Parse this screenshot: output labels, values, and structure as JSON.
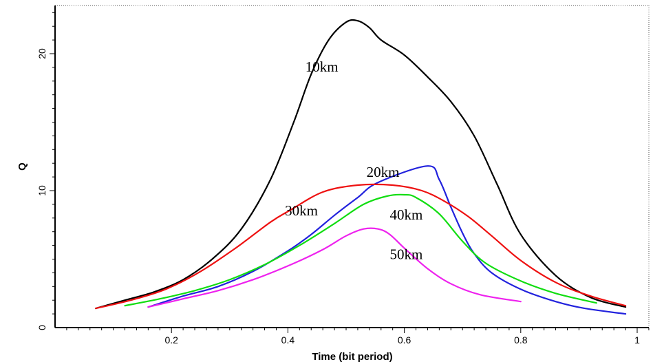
{
  "chart_data": {
    "type": "line",
    "title": "",
    "xlabel": "Time (bit period)",
    "ylabel": "Q",
    "xlim": [
      0,
      1.04
    ],
    "ylim": [
      0,
      22.5
    ],
    "xticks": [
      0.2,
      0.4,
      0.6,
      0.8,
      1
    ],
    "xtick_labels": [
      "0.2",
      "0.4",
      "0.6",
      "0.8",
      "1"
    ],
    "yticks": [
      0,
      10,
      20
    ],
    "ytick_labels": [
      "0",
      "10",
      "20"
    ],
    "grid": false,
    "legend": "none",
    "series": [
      {
        "name": "10km",
        "color": "#000000",
        "label_at": [
          0.43,
          18.7
        ],
        "x": [
          0.07,
          0.12,
          0.17,
          0.22,
          0.27,
          0.32,
          0.37,
          0.41,
          0.44,
          0.47,
          0.5,
          0.52,
          0.54,
          0.56,
          0.6,
          0.64,
          0.68,
          0.72,
          0.76,
          0.8,
          0.86,
          0.92,
          0.98
        ],
        "y": [
          1.4,
          2.0,
          2.6,
          3.5,
          5.0,
          7.2,
          10.8,
          15.0,
          18.5,
          21.0,
          22.3,
          22.4,
          21.9,
          21.0,
          19.9,
          18.3,
          16.5,
          14.0,
          10.4,
          6.8,
          3.8,
          2.2,
          1.5
        ]
      },
      {
        "name": "20km",
        "color": "#2222dd",
        "label_at": [
          0.535,
          11.0
        ],
        "x": [
          0.16,
          0.22,
          0.28,
          0.34,
          0.4,
          0.44,
          0.48,
          0.52,
          0.555,
          0.64,
          0.66,
          0.68,
          0.7,
          0.72,
          0.75,
          0.8,
          0.86,
          0.91,
          0.98
        ],
        "y": [
          1.5,
          2.3,
          3.0,
          4.1,
          5.6,
          6.8,
          8.2,
          9.5,
          10.6,
          11.8,
          10.8,
          8.8,
          6.9,
          5.4,
          4.0,
          2.8,
          1.9,
          1.4,
          1.0
        ]
      },
      {
        "name": "30km",
        "color": "#ee1111",
        "label_at": [
          0.395,
          8.2
        ],
        "x": [
          0.07,
          0.13,
          0.19,
          0.25,
          0.31,
          0.37,
          0.405,
          0.46,
          0.52,
          0.58,
          0.63,
          0.67,
          0.71,
          0.75,
          0.8,
          0.86,
          0.92,
          0.98
        ],
        "y": [
          1.4,
          2.0,
          2.8,
          4.1,
          5.8,
          7.7,
          8.6,
          9.9,
          10.4,
          10.4,
          10.0,
          9.2,
          8.1,
          6.7,
          4.9,
          3.3,
          2.3,
          1.6
        ]
      },
      {
        "name": "40km",
        "color": "#11dd11",
        "label_at": [
          0.575,
          7.9
        ],
        "x": [
          0.12,
          0.18,
          0.24,
          0.3,
          0.36,
          0.42,
          0.48,
          0.53,
          0.57,
          0.6,
          0.62,
          0.66,
          0.7,
          0.74,
          0.8,
          0.86,
          0.93
        ],
        "y": [
          1.6,
          2.1,
          2.7,
          3.5,
          4.6,
          6.0,
          7.6,
          9.0,
          9.6,
          9.7,
          9.5,
          8.3,
          6.3,
          4.7,
          3.4,
          2.5,
          1.8
        ]
      },
      {
        "name": "50km",
        "color": "#ee22ee",
        "label_at": [
          0.575,
          5.0
        ],
        "x": [
          0.16,
          0.22,
          0.28,
          0.34,
          0.4,
          0.46,
          0.5,
          0.53,
          0.555,
          0.575,
          0.6,
          0.64,
          0.68,
          0.73,
          0.8
        ],
        "y": [
          1.5,
          2.1,
          2.7,
          3.5,
          4.5,
          5.7,
          6.7,
          7.2,
          7.2,
          6.8,
          5.8,
          4.3,
          3.2,
          2.4,
          1.9
        ]
      }
    ]
  }
}
